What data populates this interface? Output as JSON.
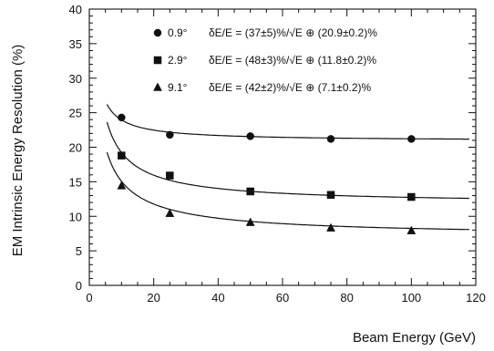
{
  "chart_data": {
    "type": "scatter",
    "xlabel": "Beam Energy (GeV)",
    "ylabel": "EM Intrinsic Energy Resolution (%)",
    "xlim": [
      0,
      120
    ],
    "ylim": [
      0,
      40
    ],
    "xticks": [
      0,
      20,
      40,
      60,
      80,
      100,
      120
    ],
    "yticks": [
      0,
      5,
      10,
      15,
      20,
      25,
      30,
      35,
      40
    ],
    "grid": false,
    "legend_position": "top-right",
    "series": [
      {
        "name": "0.9°",
        "marker": "circle",
        "legend_formula": "δE/E = (37±5)%/√E ⊕ (20.9±0.2)%",
        "x": [
          10,
          25,
          50,
          75,
          100
        ],
        "y": [
          24.3,
          21.8,
          21.6,
          21.2,
          21.2
        ],
        "fit": {
          "stochastic": 37,
          "constant": 20.9
        }
      },
      {
        "name": "2.9°",
        "marker": "square",
        "legend_formula": "δE/E = (48±3)%/√E ⊕ (11.8±0.2)%",
        "x": [
          10,
          25,
          50,
          75,
          100
        ],
        "y": [
          18.8,
          15.9,
          13.6,
          13.1,
          12.8
        ],
        "fit": {
          "stochastic": 48,
          "constant": 11.8
        }
      },
      {
        "name": "9.1°",
        "marker": "triangle",
        "legend_formula": "δE/E = (42±2)%/√E ⊕ (7.1±0.2)%",
        "x": [
          10,
          25,
          50,
          75,
          100
        ],
        "y": [
          14.4,
          10.4,
          9.1,
          8.3,
          7.9
        ],
        "fit": {
          "stochastic": 42,
          "constant": 7.1
        }
      }
    ]
  }
}
